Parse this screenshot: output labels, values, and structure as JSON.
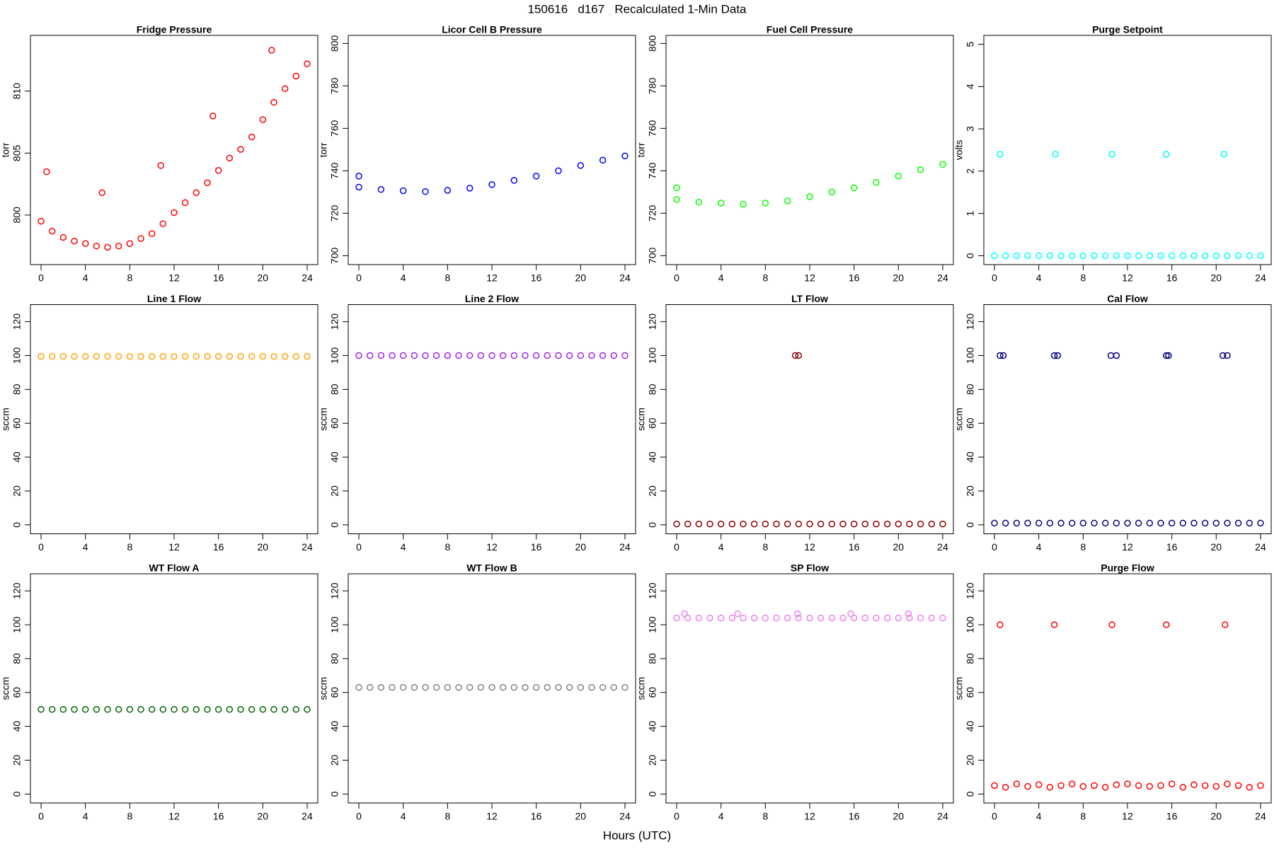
{
  "title": "150616   d167   Recalculated 1-Min Data",
  "xlabel": "Hours (UTC)",
  "chart_data": [
    {
      "type": "scatter",
      "title": "Fridge Pressure",
      "ylabel": "torr",
      "color": "#ff0000",
      "x": [
        0,
        0.5,
        1,
        2,
        3,
        4,
        5,
        5.5,
        6,
        7,
        8,
        9,
        10,
        10.8,
        11,
        12,
        13,
        14,
        15,
        15.5,
        16,
        17,
        18,
        19,
        20,
        20.8,
        21,
        22,
        23,
        24
      ],
      "values": [
        799.5,
        803.5,
        798.7,
        798.2,
        797.9,
        797.7,
        797.5,
        801.8,
        797.4,
        797.5,
        797.7,
        798.1,
        798.5,
        804.0,
        799.3,
        800.2,
        801.0,
        801.8,
        802.6,
        808.0,
        803.6,
        804.6,
        805.3,
        806.3,
        807.7,
        813.3,
        809.1,
        810.2,
        811.2,
        812.2
      ],
      "xlim": [
        -0.96,
        24.96
      ],
      "ylim": [
        796,
        814.5
      ],
      "xticks": [
        0,
        4,
        8,
        12,
        16,
        20,
        24
      ],
      "yticks": [
        800,
        805,
        810
      ]
    },
    {
      "type": "scatter",
      "title": "Licor Cell B Pressure",
      "ylabel": "torr",
      "color": "#0000ff",
      "x": [
        0,
        0,
        2,
        4,
        6,
        8,
        10,
        12,
        14,
        16,
        18,
        20,
        22,
        24
      ],
      "values": [
        737.5,
        732.3,
        731.2,
        730.6,
        730.2,
        730.8,
        731.8,
        733.5,
        735.5,
        737.5,
        740,
        742.5,
        745,
        747
      ],
      "xlim": [
        -0.96,
        24.96
      ],
      "ylim": [
        695.8,
        803.8
      ],
      "xticks": [
        0,
        4,
        8,
        12,
        16,
        20,
        24
      ],
      "yticks": [
        700,
        720,
        740,
        760,
        780,
        800
      ]
    },
    {
      "type": "scatter",
      "title": "Fuel Cell Pressure",
      "ylabel": "torr",
      "color": "#00ff00",
      "x": [
        0,
        0,
        2,
        4,
        6,
        8,
        10,
        12,
        14,
        16,
        18,
        20,
        22,
        24
      ],
      "values": [
        732,
        726.5,
        725.2,
        724.8,
        724.2,
        724.8,
        725.8,
        727.8,
        730,
        732,
        734.5,
        737.5,
        740.5,
        743
      ],
      "xlim": [
        -0.96,
        24.96
      ],
      "ylim": [
        695.8,
        803.8
      ],
      "xticks": [
        0,
        4,
        8,
        12,
        16,
        20,
        24
      ],
      "yticks": [
        700,
        720,
        740,
        760,
        780,
        800
      ]
    },
    {
      "type": "scatter",
      "title": "Purge Setpoint",
      "ylabel": "volts",
      "color": "#00ffff",
      "x": [
        0,
        1,
        2,
        3,
        4,
        5,
        6,
        7,
        8,
        9,
        10,
        11,
        12,
        13,
        14,
        15,
        16,
        17,
        18,
        19,
        20,
        21,
        22,
        23,
        24,
        0.5,
        5.5,
        10.6,
        15.5,
        20.7
      ],
      "values": [
        0,
        0,
        0,
        0,
        0,
        0,
        0,
        0,
        0,
        0,
        0,
        0,
        0,
        0,
        0,
        0,
        0,
        0,
        0,
        0,
        0,
        0,
        0,
        0,
        0,
        2.4,
        2.4,
        2.4,
        2.4,
        2.4
      ],
      "xlim": [
        -0.96,
        24.96
      ],
      "ylim": [
        -0.21,
        5.21
      ],
      "xticks": [
        0,
        4,
        8,
        12,
        16,
        20,
        24
      ],
      "yticks": [
        0,
        1,
        2,
        3,
        4,
        5
      ]
    },
    {
      "type": "scatter",
      "title": "Line 1 Flow",
      "ylabel": "sccm",
      "color": "#ffa500",
      "x": [
        0,
        1,
        2,
        3,
        4,
        5,
        6,
        7,
        8,
        9,
        10,
        11,
        12,
        13,
        14,
        15,
        16,
        17,
        18,
        19,
        20,
        21,
        22,
        23,
        24
      ],
      "values": [
        99.5,
        99.5,
        99.5,
        99.5,
        99.5,
        99.5,
        99.5,
        99.5,
        99.5,
        99.5,
        99.5,
        99.5,
        99.5,
        99.5,
        99.5,
        99.5,
        99.5,
        99.5,
        99.5,
        99.5,
        99.5,
        99.5,
        99.5,
        99.5,
        99.5
      ],
      "xlim": [
        -0.96,
        24.96
      ],
      "ylim": [
        -5.3,
        130.1
      ],
      "xticks": [
        0,
        4,
        8,
        12,
        16,
        20,
        24
      ],
      "yticks": [
        0,
        20,
        40,
        60,
        80,
        100,
        120
      ]
    },
    {
      "type": "scatter",
      "title": "Line 2 Flow",
      "ylabel": "sccm",
      "color": "#a020f0",
      "x": [
        0,
        1,
        2,
        3,
        4,
        5,
        6,
        7,
        8,
        9,
        10,
        11,
        12,
        13,
        14,
        15,
        16,
        17,
        18,
        19,
        20,
        21,
        22,
        23,
        24
      ],
      "values": [
        100,
        100,
        100,
        100,
        100,
        100,
        100,
        100,
        100,
        100,
        100,
        100,
        100,
        100,
        100,
        100,
        100,
        100,
        100,
        100,
        100,
        100,
        100,
        100,
        100
      ],
      "xlim": [
        -0.96,
        24.96
      ],
      "ylim": [
        -5.3,
        130.1
      ],
      "xticks": [
        0,
        4,
        8,
        12,
        16,
        20,
        24
      ],
      "yticks": [
        0,
        20,
        40,
        60,
        80,
        100,
        120
      ]
    },
    {
      "type": "scatter",
      "title": "LT Flow",
      "ylabel": "sccm",
      "color": "#8b0000",
      "x": [
        0,
        1,
        2,
        3,
        4,
        5,
        6,
        7,
        8,
        9,
        10,
        11,
        12,
        13,
        14,
        15,
        16,
        17,
        18,
        19,
        20,
        21,
        22,
        23,
        24,
        10.7,
        11.0
      ],
      "values": [
        0.5,
        0.5,
        0.5,
        0.5,
        0.5,
        0.5,
        0.5,
        0.5,
        0.5,
        0.5,
        0.5,
        0.5,
        0.5,
        0.5,
        0.5,
        0.5,
        0.5,
        0.5,
        0.5,
        0.5,
        0.5,
        0.5,
        0.5,
        0.5,
        0.5,
        100,
        100
      ],
      "xlim": [
        -0.96,
        24.96
      ],
      "ylim": [
        -5.3,
        130.1
      ],
      "xticks": [
        0,
        4,
        8,
        12,
        16,
        20,
        24
      ],
      "yticks": [
        0,
        20,
        40,
        60,
        80,
        100,
        120
      ]
    },
    {
      "type": "scatter",
      "title": "Cal Flow",
      "ylabel": "sccm",
      "color": "#000080",
      "x": [
        0,
        1,
        2,
        3,
        4,
        5,
        6,
        7,
        8,
        9,
        10,
        11,
        12,
        13,
        14,
        15,
        16,
        17,
        18,
        19,
        20,
        21,
        22,
        23,
        24,
        0.5,
        0.8,
        5.4,
        5.7,
        10.5,
        11,
        15.5,
        15.7,
        20.6,
        21
      ],
      "values": [
        1,
        1,
        1,
        1,
        1,
        1,
        1,
        1,
        1,
        1,
        1,
        1,
        1,
        1,
        1,
        1,
        1,
        1,
        1,
        1,
        1,
        1,
        1,
        1,
        1,
        100,
        100,
        100,
        100,
        100,
        100,
        100,
        100,
        100,
        100
      ],
      "xlim": [
        -0.96,
        24.96
      ],
      "ylim": [
        -5.3,
        130.1
      ],
      "xticks": [
        0,
        4,
        8,
        12,
        16,
        20,
        24
      ],
      "yticks": [
        0,
        20,
        40,
        60,
        80,
        100,
        120
      ]
    },
    {
      "type": "scatter",
      "title": "WT Flow A",
      "ylabel": "sccm",
      "color": "#006400",
      "x": [
        0,
        1,
        2,
        3,
        4,
        5,
        6,
        7,
        8,
        9,
        10,
        11,
        12,
        13,
        14,
        15,
        16,
        17,
        18,
        19,
        20,
        21,
        22,
        23,
        24
      ],
      "values": [
        50,
        50,
        50,
        50,
        50,
        50,
        50,
        50,
        50,
        50,
        50,
        50,
        50,
        50,
        50,
        50,
        50,
        50,
        50,
        50,
        50,
        50,
        50,
        50,
        50
      ],
      "xlim": [
        -0.96,
        24.96
      ],
      "ylim": [
        -5.3,
        130.1
      ],
      "xticks": [
        0,
        4,
        8,
        12,
        16,
        20,
        24
      ],
      "yticks": [
        0,
        20,
        40,
        60,
        80,
        100,
        120
      ]
    },
    {
      "type": "scatter",
      "title": "WT Flow B",
      "ylabel": "sccm",
      "color": "#808080",
      "x": [
        0,
        1,
        2,
        3,
        4,
        5,
        6,
        7,
        8,
        9,
        10,
        11,
        12,
        13,
        14,
        15,
        16,
        17,
        18,
        19,
        20,
        21,
        22,
        23,
        24
      ],
      "values": [
        63,
        63,
        63,
        63,
        63,
        63,
        63,
        63,
        63,
        63,
        63,
        63,
        63,
        63,
        63,
        63,
        63,
        63,
        63,
        63,
        63,
        63,
        63,
        63,
        63
      ],
      "xlim": [
        -0.96,
        24.96
      ],
      "ylim": [
        -5.3,
        130.1
      ],
      "xticks": [
        0,
        4,
        8,
        12,
        16,
        20,
        24
      ],
      "yticks": [
        0,
        20,
        40,
        60,
        80,
        100,
        120
      ]
    },
    {
      "type": "scatter",
      "title": "SP Flow",
      "ylabel": "sccm",
      "color": "#ee82ee",
      "x": [
        0,
        1,
        2,
        3,
        4,
        5,
        6,
        7,
        8,
        9,
        10,
        11,
        12,
        13,
        14,
        15,
        16,
        17,
        18,
        19,
        20,
        21,
        22,
        23,
        24,
        0.7,
        5.5,
        10.9,
        15.7,
        20.9
      ],
      "values": [
        104,
        104,
        104,
        104,
        104,
        104,
        104,
        104,
        104,
        104,
        104,
        104,
        104,
        104,
        104,
        104,
        104,
        104,
        104,
        104,
        104,
        104,
        104,
        104,
        104,
        106.5,
        106.5,
        106.5,
        106.5,
        106.5
      ],
      "xlim": [
        -0.96,
        24.96
      ],
      "ylim": [
        -5.3,
        130.1
      ],
      "xticks": [
        0,
        4,
        8,
        12,
        16,
        20,
        24
      ],
      "yticks": [
        0,
        20,
        40,
        60,
        80,
        100,
        120
      ]
    },
    {
      "type": "scatter",
      "title": "Purge Flow",
      "ylabel": "sccm",
      "color": "#ff0000",
      "x": [
        0,
        1,
        2,
        3,
        4,
        5,
        6,
        7,
        8,
        9,
        10,
        11,
        12,
        13,
        14,
        15,
        16,
        17,
        18,
        19,
        20,
        21,
        22,
        23,
        24,
        0.5,
        5.4,
        10.6,
        15.5,
        20.8
      ],
      "values": [
        5,
        4,
        6,
        4.5,
        5.5,
        4,
        5,
        6,
        4.5,
        5,
        4,
        5.5,
        6,
        5,
        4.5,
        5,
        6,
        4,
        5.5,
        5,
        4.5,
        6,
        5,
        4,
        5,
        100,
        100,
        100,
        100,
        100
      ],
      "xlim": [
        -0.96,
        24.96
      ],
      "ylim": [
        -5.3,
        130.1
      ],
      "xticks": [
        0,
        4,
        8,
        12,
        16,
        20,
        24
      ],
      "yticks": [
        0,
        20,
        40,
        60,
        80,
        100,
        120
      ]
    }
  ]
}
